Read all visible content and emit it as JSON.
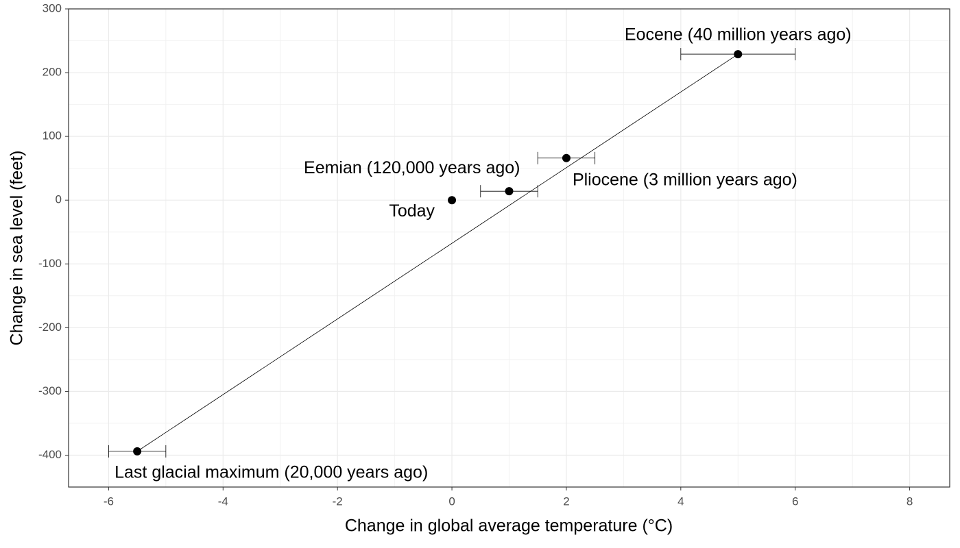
{
  "chart_data": {
    "type": "scatter",
    "x_label": "Change in global average temperature (°C)",
    "y_label": "Change in sea level (feet)",
    "x": [
      0,
      1,
      2,
      5,
      -5.5
    ],
    "y": [
      0,
      14,
      66,
      229,
      -394
    ],
    "xmin": [
      null,
      0.5,
      1.5,
      4,
      -6
    ],
    "xmax": [
      null,
      1.5,
      2.5,
      6,
      -5
    ],
    "labels": [
      "Today",
      "Eemian (120,000 years ago)",
      "Pliocene (3 million years ago)",
      "Eocene (40 million years ago)",
      "Last glacial maximum (20,000 years ago)"
    ],
    "fit": {
      "x": [
        -5.5,
        5
      ],
      "y": [
        -394,
        229
      ]
    },
    "color": "#000000",
    "xlim": [
      -6.7,
      8.7
    ],
    "ylim": [
      -450,
      300
    ],
    "xticks": [
      -6,
      -4,
      -2,
      0,
      2,
      4,
      6,
      8
    ],
    "yticks": [
      -400,
      -300,
      -200,
      -100,
      0,
      100,
      200,
      300
    ],
    "grid": true
  }
}
